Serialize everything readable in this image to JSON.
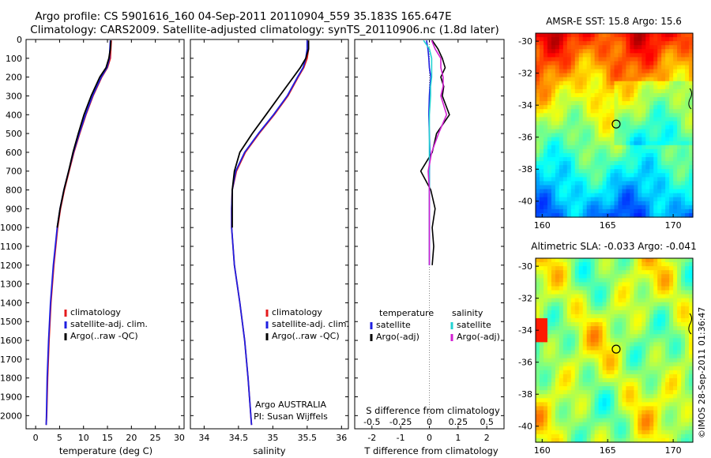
{
  "header": {
    "line1": "Argo profile: CS 5901616_160 04-Sep-2011 20110904_559 35.183S 165.647E",
    "line2": "Climatology: CARS2009. Satellite-adjusted climatology: synTS_20110906.nc (1.8d later)"
  },
  "colors": {
    "climatology": "#e41a1c",
    "satellite": "#1f1fe0",
    "argo": "#000000",
    "sal_satellite": "#22d3d3",
    "sal_argo": "#d21fd2"
  },
  "depth_ticks": [
    "0",
    "100",
    "200",
    "300",
    "400",
    "500",
    "600",
    "700",
    "800",
    "900",
    "1000",
    "1100",
    "1200",
    "1300",
    "1400",
    "1500",
    "1600",
    "1700",
    "1800",
    "1900",
    "2000"
  ],
  "chart_data": [
    {
      "type": "line",
      "xlabel": "temperature (deg C)",
      "ylabel": "",
      "xlim": [
        -2,
        31
      ],
      "ylim": [
        2070,
        0
      ],
      "xticks": [
        "0",
        "5",
        "10",
        "15",
        "20",
        "25",
        "30"
      ],
      "depth": [
        5,
        50,
        100,
        150,
        200,
        300,
        400,
        500,
        600,
        700,
        800,
        900,
        1000,
        1200,
        1400,
        1600,
        1800,
        2000,
        2050
      ],
      "series": [
        {
          "name": "climatology",
          "values": [
            15.8,
            15.7,
            15.6,
            15.0,
            13.8,
            12.0,
            10.5,
            9.2,
            8.0,
            7.0,
            6.0,
            5.2,
            4.6,
            3.8,
            3.2,
            2.8,
            2.5,
            2.3,
            2.2
          ]
        },
        {
          "name": "satellite-adj. clim.",
          "values": [
            15.6,
            15.5,
            15.4,
            14.9,
            13.7,
            11.9,
            10.4,
            9.1,
            7.9,
            6.9,
            5.9,
            5.1,
            4.5,
            3.7,
            3.1,
            2.7,
            2.4,
            2.25,
            2.2
          ]
        },
        {
          "name": "Argo(..raw -QC)",
          "values": [
            15.7,
            15.6,
            15.3,
            14.7,
            13.4,
            11.6,
            10.1,
            8.9,
            7.8,
            6.9,
            5.9,
            5.1,
            4.5
          ]
        }
      ],
      "legend": {
        "position": "bottom-right",
        "entries": [
          "climatology",
          "satellite-adj. clim.",
          "Argo(..raw -QC)"
        ]
      }
    },
    {
      "type": "line",
      "xlabel": "salinity",
      "ylabel": "",
      "xlim": [
        33.8,
        36.1
      ],
      "ylim": [
        2070,
        0
      ],
      "xticks": [
        "34",
        "34.5",
        "35",
        "35.5",
        "36"
      ],
      "depth": [
        5,
        50,
        100,
        150,
        200,
        300,
        400,
        500,
        600,
        700,
        800,
        900,
        1000,
        1200,
        1400,
        1600,
        1800,
        2000,
        2050
      ],
      "series": [
        {
          "name": "climatology",
          "values": [
            35.52,
            35.52,
            35.5,
            35.45,
            35.37,
            35.22,
            35.02,
            34.8,
            34.6,
            34.47,
            34.41,
            34.4,
            34.4,
            34.44,
            34.52,
            34.59,
            34.64,
            34.68,
            34.69
          ]
        },
        {
          "name": "satellite-adj. clim.",
          "values": [
            35.5,
            35.5,
            35.48,
            35.44,
            35.36,
            35.21,
            35.01,
            34.79,
            34.59,
            34.46,
            34.41,
            34.4,
            34.4,
            34.44,
            34.52,
            34.59,
            34.64,
            34.68,
            34.69
          ]
        },
        {
          "name": "Argo(..raw -QC)",
          "values": [
            35.52,
            35.52,
            35.48,
            35.4,
            35.3,
            35.1,
            34.9,
            34.7,
            34.52,
            34.44,
            34.41,
            34.41,
            34.41
          ]
        }
      ],
      "legend": {
        "position": "bottom-right",
        "entries": [
          "climatology",
          "satellite-adj. clim.",
          "Argo(..raw -QC)"
        ]
      },
      "annotation": [
        "Argo AUSTRALIA",
        "PI: Susan Wijffels"
      ]
    },
    {
      "type": "line",
      "xlabel": "T difference from climatology",
      "xlabel_top": "S difference from climatology",
      "ylabel": "",
      "xlim": [
        -2.6,
        2.6
      ],
      "ylim": [
        2070,
        0
      ],
      "xticks": [
        "-2",
        "-1",
        "0",
        "1",
        "2"
      ],
      "xticks_s": [
        "-0.5",
        "-0.25",
        "0",
        "0.25",
        "0.5"
      ],
      "depth": [
        5,
        50,
        100,
        150,
        200,
        250,
        300,
        400,
        500,
        600,
        700,
        800,
        900,
        1000,
        1100,
        1200
      ],
      "series": [
        {
          "name": "temperature satellite",
          "values": [
            -0.1,
            -0.05,
            -0.02,
            0.0,
            0.05,
            0.02,
            0.0,
            -0.02,
            0.0,
            0.02,
            0.0,
            0.0,
            0.0,
            0.0,
            0.0,
            0.0
          ]
        },
        {
          "name": "temperature Argo(-adj)",
          "values": [
            0.1,
            0.3,
            0.45,
            0.55,
            0.4,
            0.5,
            0.45,
            0.7,
            0.25,
            0.1,
            -0.3,
            0.05,
            0.2,
            0.1,
            0.15,
            0.1
          ]
        },
        {
          "name": "salinity satellite",
          "values": [
            -0.05,
            0.0,
            0.02,
            0.02,
            0.02,
            0.01,
            0.01,
            0.0,
            0.0,
            0.0,
            0.0,
            0.0,
            0.0,
            0.0,
            0.0,
            0.0
          ]
        },
        {
          "name": "salinity Argo(-adj)",
          "values": [
            0.02,
            0.05,
            0.1,
            0.1,
            0.12,
            0.12,
            0.1,
            0.15,
            0.08,
            0.02,
            -0.01,
            0.0,
            0.0,
            0.0,
            0.0,
            0.0
          ]
        }
      ],
      "legend": {
        "position": "bottom",
        "groups": [
          {
            "title": "temperature",
            "entries": [
              "satellite",
              "Argo(-adj)"
            ]
          },
          {
            "title": "salinity",
            "entries": [
              "satellite",
              "Argo(-adj)"
            ]
          }
        ]
      }
    },
    {
      "type": "heatmap",
      "title": "AMSR-E SST: 15.8 Argo: 15.6",
      "xlim": [
        159.5,
        171.5
      ],
      "ylim": [
        -41,
        -29.5
      ],
      "xticks": [
        "160",
        "165",
        "170"
      ],
      "yticks": [
        "-30",
        "-32",
        "-34",
        "-36",
        "-38",
        "-40"
      ],
      "marker": {
        "lon": 165.647,
        "lat": -35.183
      },
      "colormap": "jet"
    },
    {
      "type": "heatmap",
      "title": "Altimetric SLA: -0.033 Argo: -0.041",
      "xlim": [
        159.5,
        171.5
      ],
      "ylim": [
        -41,
        -29.5
      ],
      "xticks": [
        "160",
        "165",
        "170"
      ],
      "yticks": [
        "-30",
        "-32",
        "-34",
        "-36",
        "-38",
        "-40"
      ],
      "marker": {
        "lon": 165.647,
        "lat": -35.183
      },
      "colormap": "jet"
    }
  ],
  "footer": {
    "credit": "©IMOS 28-Sep-2011 01:36:47"
  }
}
